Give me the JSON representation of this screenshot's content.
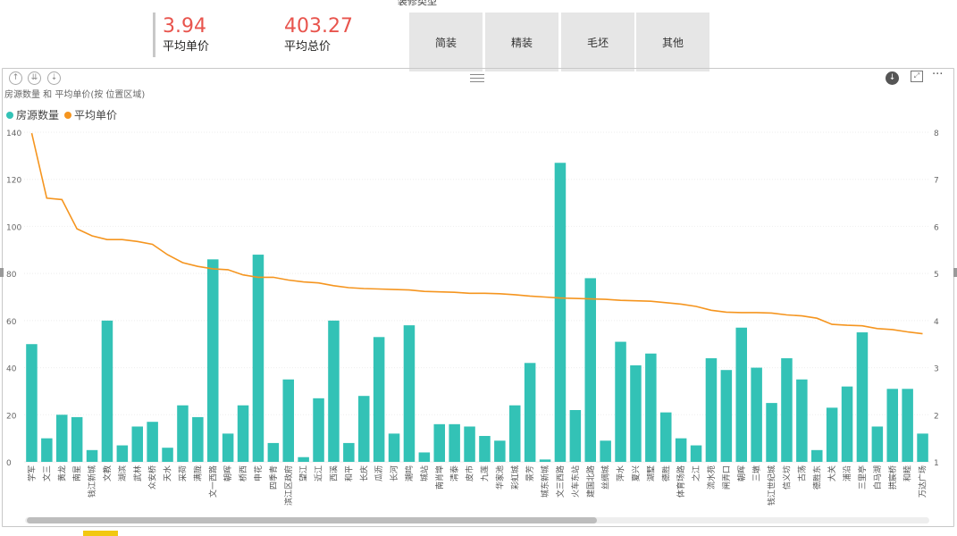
{
  "kpis": [
    {
      "value": "3.94",
      "label": "平均单价"
    },
    {
      "value": "403.27",
      "label": "平均总价"
    }
  ],
  "slicer": {
    "title": "装修类型",
    "options": [
      "简装",
      "精装",
      "毛坯",
      "其他"
    ]
  },
  "visual_header": {
    "icons": [
      "drill-up-icon",
      "expand-all-icon",
      "drill-down-icon",
      "download-icon",
      "focus-mode-icon",
      "more-options-icon"
    ],
    "more_label": "···"
  },
  "colors": {
    "bars": "#33c2b6",
    "line": "#f5951f",
    "kpi": "#e8544d"
  },
  "chart_data": {
    "type": "bar",
    "title": "房源数量 和 平均单价(按 位置区域)",
    "legend": [
      {
        "name": "房源数量",
        "color": "#33c2b6"
      },
      {
        "name": "平均单价",
        "color": "#f5951f"
      }
    ],
    "legend_position": "top-left",
    "categories": [
      "学军",
      "文三",
      "黄龙",
      "南星",
      "钱江新城",
      "文教",
      "湖滨",
      "武林",
      "众安桥",
      "天水",
      "采荷",
      "满陇",
      "文一西路",
      "朝晖",
      "桥西",
      "申花",
      "四季青",
      "滨江区政府",
      "望江",
      "近江",
      "西溪",
      "和平",
      "长庆",
      "瓜沥",
      "长河",
      "潮鸣",
      "城站",
      "南肖埠",
      "清泰",
      "皮市",
      "九莲",
      "华家池",
      "彩虹城",
      "景芳",
      "城东新城",
      "文三西路",
      "火车东站",
      "建国北路",
      "丝绸城",
      "萍水",
      "夏兴",
      "湖墅",
      "德胜",
      "体育场路",
      "之江",
      "流水苑",
      "闸弄口",
      "朝晖2",
      "三墩",
      "钱江世纪城",
      "信义坊",
      "古荡",
      "德胜东",
      "大关",
      "浦沿",
      "三里亭",
      "白马湖",
      "拱宸桥",
      "和睦",
      "万达广场"
    ],
    "category_labels": [
      "学军",
      "文三",
      "黄龙",
      "南星",
      "钱江新城",
      "文教",
      "湖滨",
      "武林",
      "众安桥",
      "天水",
      "采荷",
      "满陇",
      "文一西路",
      "朝晖",
      "桥西",
      "申花",
      "四季青",
      "滨江区政府",
      "望江",
      "近江",
      "西溪",
      "和平",
      "长庆",
      "瓜沥",
      "长河",
      "潮鸣",
      "城站",
      "南肖埠",
      "清泰",
      "皮市",
      "九莲",
      "华家池",
      "彩虹城",
      "景芳",
      "城东新城",
      "文三西路",
      "火车东站",
      "建国北路",
      "丝绸城",
      "萍水",
      "夏兴",
      "湖墅",
      "德胜",
      "体育场路",
      "之江",
      "流水苑",
      "闸弄口",
      "朝晖",
      "三墩",
      "钱江世纪城",
      "信义坊",
      "古荡",
      "德胜东",
      "大关",
      "浦沿",
      "三里亭",
      "白马湖",
      "拱宸桥",
      "和睦",
      "万达广场"
    ],
    "series": [
      {
        "name": "房源数量",
        "axis": "left",
        "type": "bar",
        "values": [
          50,
          10,
          20,
          19,
          5,
          60,
          7,
          15,
          17,
          6,
          24,
          19,
          86,
          12,
          24,
          88,
          8,
          35,
          2,
          27,
          60,
          8,
          28,
          53,
          12,
          58,
          4,
          16,
          16,
          15,
          11,
          9,
          24,
          42,
          1,
          127,
          22,
          78,
          9,
          51,
          41,
          46,
          21,
          10,
          7,
          44,
          39,
          57,
          40,
          25,
          44,
          35,
          5,
          23,
          32,
          55,
          15,
          31,
          31,
          12
        ]
      },
      {
        "name": "平均单价",
        "axis": "right",
        "type": "line",
        "values": [
          7.98,
          6.6,
          6.57,
          5.95,
          5.8,
          5.72,
          5.72,
          5.68,
          5.62,
          5.4,
          5.23,
          5.15,
          5.1,
          5.08,
          4.97,
          4.92,
          4.92,
          4.86,
          4.82,
          4.8,
          4.74,
          4.7,
          4.68,
          4.67,
          4.66,
          4.65,
          4.62,
          4.61,
          4.6,
          4.58,
          4.58,
          4.57,
          4.55,
          4.52,
          4.5,
          4.48,
          4.47,
          4.46,
          4.45,
          4.43,
          4.42,
          4.41,
          4.38,
          4.35,
          4.3,
          4.22,
          4.18,
          4.17,
          4.17,
          4.16,
          4.12,
          4.1,
          4.05,
          3.92,
          3.9,
          3.89,
          3.83,
          3.81,
          3.76,
          3.72
        ]
      }
    ],
    "y_left": {
      "ylim": [
        0,
        140
      ],
      "ticks": [
        0,
        20,
        40,
        60,
        80,
        100,
        120,
        140
      ]
    },
    "y_right": {
      "ylim": [
        1,
        8
      ],
      "ticks": [
        1,
        2,
        3,
        4,
        5,
        6,
        7,
        8
      ]
    },
    "grid": true
  }
}
